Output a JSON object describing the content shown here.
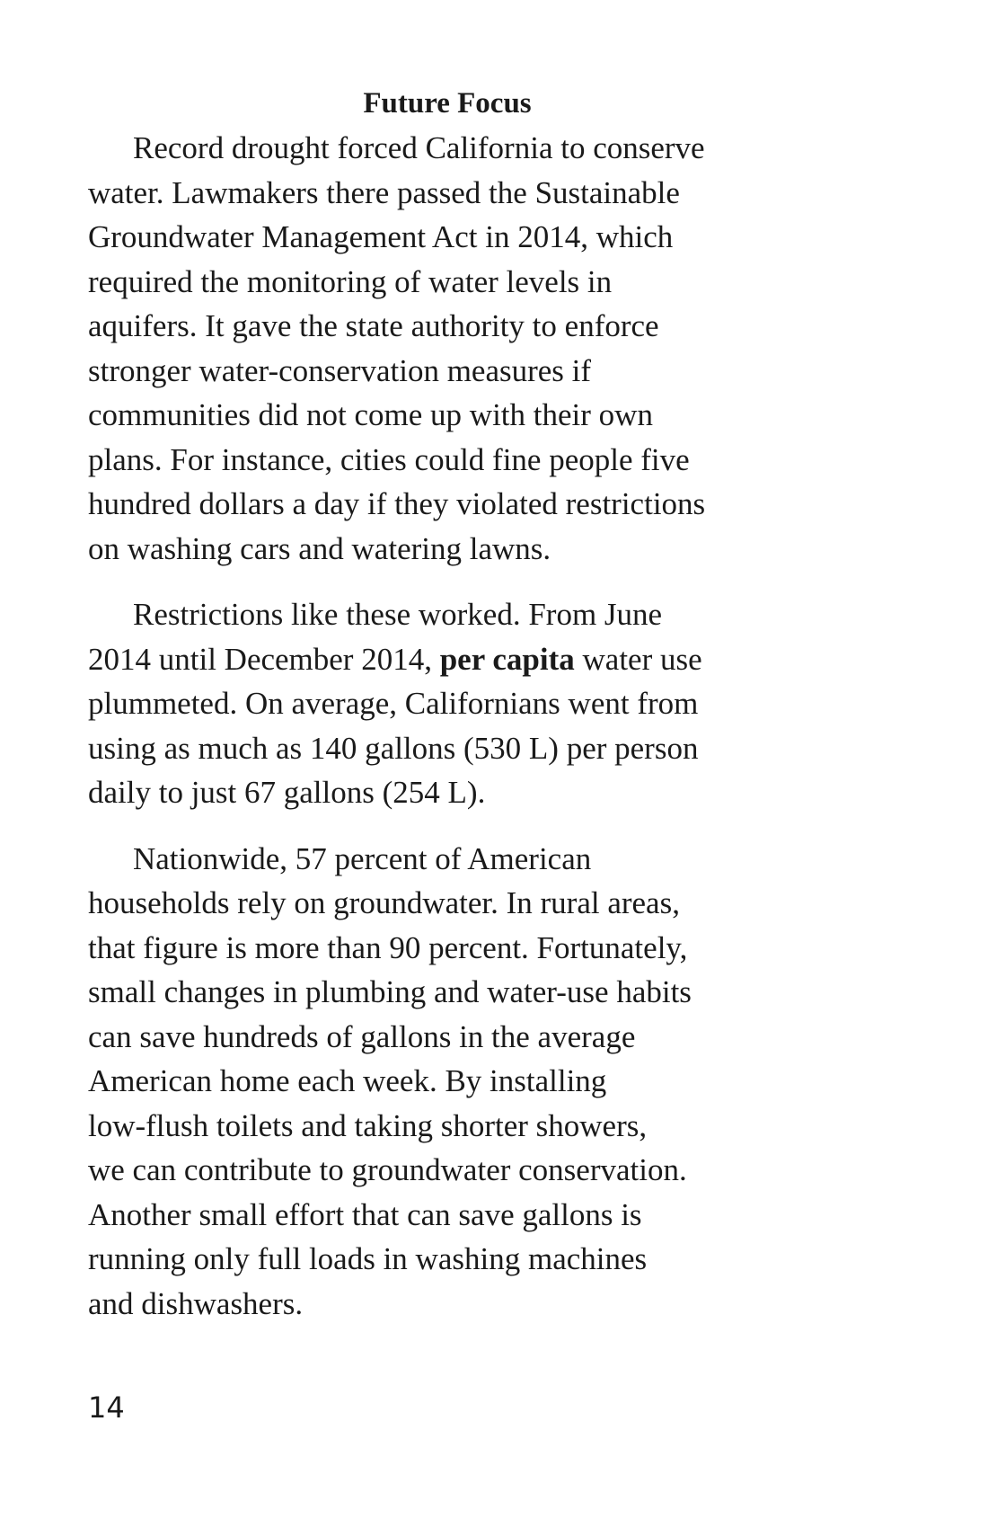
{
  "heading": "Future Focus",
  "paragraph1": {
    "lines": [
      "Record drought forced California to conserve",
      "water. Lawmakers there passed the Sustainable",
      "Groundwater Management Act in 2014, which",
      "required the monitoring of water levels in",
      "aquifers. It gave the state authority to enforce",
      "stronger water-conservation measures if",
      "communities did not come up with their own",
      "plans. For instance, cities could fine people five",
      "hundred dollars a day if they violated restrictions",
      "on washing cars and watering lawns."
    ]
  },
  "paragraph2": {
    "line1": "Restrictions like these worked. From June",
    "line2_before": "2014 until December 2014, ",
    "line2_bold": "per capita",
    "line2_after": " water use",
    "line3": "plummeted. On average, Californians went from",
    "line4": "using as much as 140 gallons (530 L) per person",
    "line5": "daily to just 67 gallons (254 L)."
  },
  "paragraph3": {
    "lines": [
      "Nationwide, 57 percent of American",
      "households rely on groundwater. In rural areas,",
      "that figure is more than 90 percent. Fortunately,",
      "small changes in plumbing and water-use habits",
      "can save hundreds of gallons in the average",
      "American home each week. By installing",
      "low-flush toilets and taking shorter showers,",
      "we can contribute to groundwater conservation.",
      "Another small effort that can save gallons is",
      "running only full loads in washing machines",
      "and dishwashers."
    ]
  },
  "page_number": "14"
}
